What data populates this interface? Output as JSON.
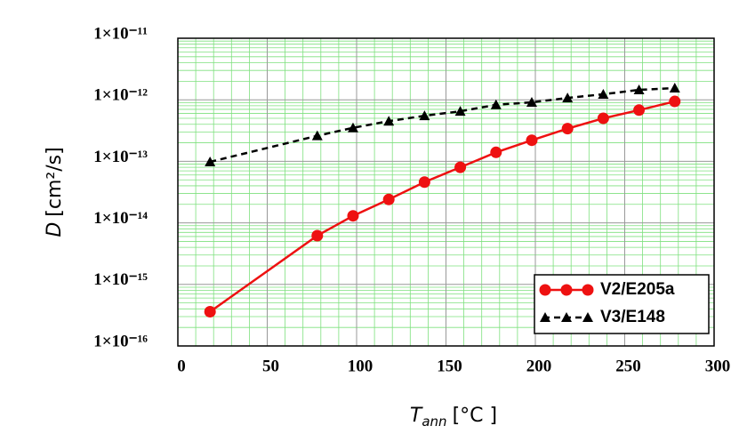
{
  "chart_data": {
    "type": "line",
    "xlabel": {
      "symbol": "T",
      "subscript": "ann",
      "unit": "[°C ]"
    },
    "ylabel": {
      "symbol": "D",
      "unit": "[cm²/s]"
    },
    "xlim": [
      0,
      300
    ],
    "xticks": [
      0,
      50,
      100,
      150,
      200,
      250,
      300
    ],
    "ylim": [
      1e-16,
      1e-11
    ],
    "ylog": true,
    "yticks": [
      {
        "value": 1e-16,
        "label": "1×10⁻¹⁶"
      },
      {
        "value": 1e-15,
        "label": "1×10⁻¹⁵"
      },
      {
        "value": 1e-14,
        "label": "1×10⁻¹⁴"
      },
      {
        "value": 1e-13,
        "label": "1×10⁻¹³"
      },
      {
        "value": 1e-12,
        "label": "1×10⁻¹²"
      },
      {
        "value": 1e-11,
        "label": "1×10⁻¹¹"
      }
    ],
    "grid": true,
    "legend": "lower right",
    "series": [
      {
        "name": "V2/E205a",
        "color": "#ee1111",
        "linestyle": "solid",
        "marker": "circle",
        "x": [
          18,
          78,
          98,
          118,
          138,
          158,
          178,
          198,
          218,
          238,
          258,
          278
        ],
        "values": [
          3.6e-16,
          6.2e-15,
          1.3e-14,
          2.4e-14,
          4.6e-14,
          8e-14,
          1.4e-13,
          2.2e-13,
          3.4e-13,
          5e-13,
          6.8e-13,
          9.4e-13
        ]
      },
      {
        "name": "V3/E148",
        "color": "#000000",
        "linestyle": "dashed",
        "marker": "triangle",
        "x": [
          18,
          78,
          98,
          118,
          138,
          158,
          178,
          198,
          218,
          238,
          258,
          278
        ],
        "values": [
          9.8e-14,
          2.6e-13,
          3.5e-13,
          4.5e-13,
          5.5e-13,
          6.5e-13,
          8.3e-13,
          9.1e-13,
          1.07e-12,
          1.23e-12,
          1.45e-12,
          1.55e-12
        ]
      }
    ]
  }
}
